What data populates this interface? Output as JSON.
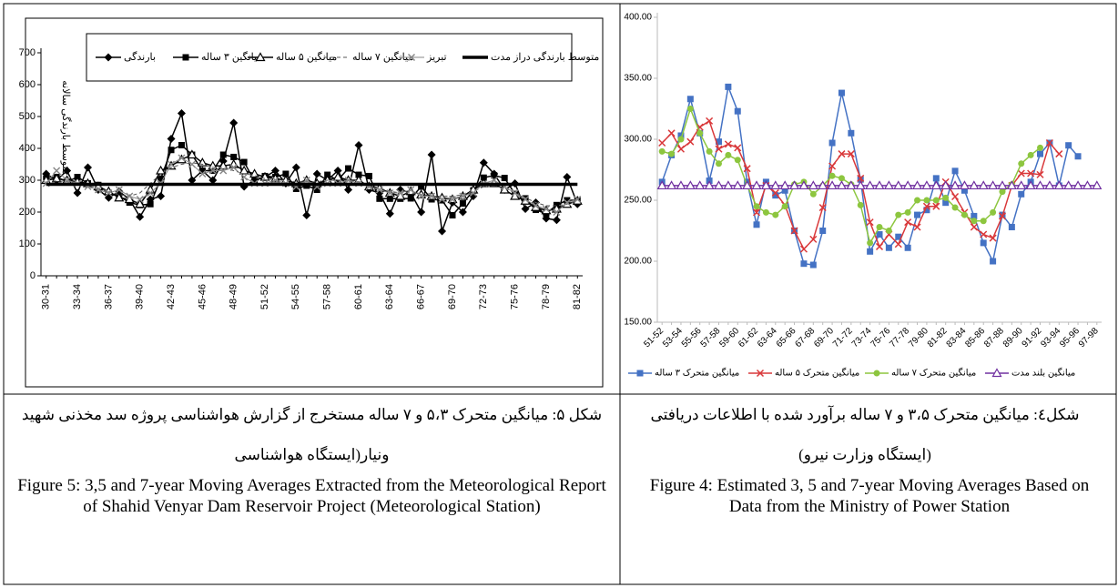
{
  "chart_data": [
    {
      "type": "line",
      "y_label": "متوسط بارندگی سالانه",
      "categories": [
        "30-31",
        null,
        null,
        "33-34",
        null,
        null,
        "36-37",
        null,
        null,
        "39-40",
        null,
        null,
        "42-43",
        null,
        null,
        "45-46",
        null,
        null,
        "48-49",
        null,
        null,
        "51-52",
        null,
        null,
        "54-55",
        null,
        null,
        "57-58",
        null,
        null,
        "60-61",
        null,
        null,
        "63-64",
        null,
        null,
        "66-67",
        null,
        null,
        "69-70",
        null,
        null,
        "72-73",
        null,
        null,
        "75-76",
        null,
        null,
        "78-79",
        null,
        null,
        "81-82"
      ],
      "ylim": [
        0,
        700
      ],
      "yticks": [
        0,
        100,
        200,
        300,
        400,
        500,
        600,
        700
      ],
      "series": [
        {
          "name": "بارندگی",
          "color": "#000000",
          "marker": "diamond",
          "values": [
            320,
            300,
            330,
            260,
            340,
            270,
            245,
            265,
            240,
            185,
            240,
            250,
            430,
            510,
            300,
            330,
            300,
            360,
            480,
            280,
            300,
            310,
            330,
            290,
            340,
            190,
            320,
            300,
            330,
            270,
            410,
            270,
            260,
            195,
            270,
            260,
            200,
            380,
            140,
            230,
            200,
            250,
            355,
            320,
            270,
            290,
            210,
            230,
            180,
            175,
            310,
            225
          ]
        },
        {
          "name": "میانگین ۳ ساله",
          "color": "#000000",
          "marker": "square",
          "values": [
            305,
            310,
            295,
            310,
            290,
            285,
            258,
            250,
            230,
            222,
            225,
            305,
            395,
            410,
            380,
            330,
            330,
            380,
            373,
            357,
            297,
            313,
            310,
            320,
            273,
            283,
            270,
            317,
            300,
            337,
            317,
            313,
            242,
            242,
            242,
            243,
            280,
            240,
            237,
            190,
            227,
            268,
            308,
            315,
            307,
            257,
            243,
            207,
            195,
            222,
            237,
            237
          ]
        },
        {
          "name": "میانگین ۵ ساله",
          "color": "#000000",
          "marker": "triangle",
          "values": [
            300,
            305,
            300,
            295,
            290,
            280,
            265,
            245,
            240,
            225,
            270,
            330,
            345,
            365,
            380,
            355,
            345,
            345,
            350,
            330,
            320,
            310,
            305,
            300,
            290,
            300,
            290,
            300,
            310,
            300,
            300,
            280,
            275,
            260,
            250,
            265,
            255,
            250,
            245,
            240,
            250,
            270,
            290,
            290,
            270,
            250,
            235,
            215,
            205,
            210,
            225,
            235
          ]
        },
        {
          "name": "میانگین ۷ ساله",
          "color": "#555555",
          "marker": "none",
          "dash": true,
          "values": [
            295,
            298,
            295,
            290,
            285,
            275,
            265,
            255,
            250,
            260,
            290,
            320,
            340,
            350,
            355,
            350,
            340,
            340,
            330,
            320,
            315,
            305,
            300,
            300,
            295,
            295,
            295,
            300,
            300,
            300,
            295,
            285,
            275,
            265,
            260,
            260,
            255,
            250,
            250,
            250,
            255,
            265,
            280,
            285,
            275,
            260,
            245,
            230,
            220,
            220,
            225,
            235
          ]
        },
        {
          "name": "تبریز",
          "color": "#888888",
          "marker": "x",
          "values": [
            290,
            330,
            300,
            290,
            280,
            270,
            260,
            270,
            250,
            240,
            260,
            290,
            350,
            370,
            350,
            320,
            330,
            330,
            340,
            310,
            290,
            290,
            300,
            290,
            280,
            300,
            280,
            290,
            290,
            300,
            290,
            280,
            270,
            260,
            260,
            270,
            250,
            250,
            240,
            240,
            250,
            260,
            290,
            300,
            280,
            260,
            240,
            220,
            210,
            200,
            230,
            240
          ]
        },
        {
          "name": "متوسط بارندگی دراز مدت",
          "color": "#000000",
          "marker": "none",
          "values": [
            287,
            287,
            287,
            287,
            287,
            287,
            287,
            287,
            287,
            287,
            287,
            287,
            287,
            287,
            287,
            287,
            287,
            287,
            287,
            287,
            287,
            287,
            287,
            287,
            287,
            287,
            287,
            287,
            287,
            287,
            287,
            287,
            287,
            287,
            287,
            287,
            287,
            287,
            287,
            287,
            287,
            287,
            287,
            287,
            287,
            287,
            287,
            287,
            287,
            287,
            287,
            287
          ]
        }
      ]
    },
    {
      "type": "line",
      "categories": [
        "51-52",
        null,
        "53-54",
        null,
        "55-56",
        null,
        "57-58",
        null,
        "59-60",
        null,
        "61-62",
        null,
        "63-64",
        null,
        "65-66",
        null,
        "67-68",
        null,
        "69-70",
        null,
        "71-72",
        null,
        "73-74",
        null,
        "75-76",
        null,
        "77-78",
        null,
        "79-80",
        null,
        "81-82",
        null,
        "83-84",
        null,
        "85-86",
        null,
        "87-88",
        null,
        "89-90",
        null,
        "91-92",
        null,
        "93-94",
        null,
        "95-96",
        null,
        "97-98"
      ],
      "ylim": [
        150,
        400
      ],
      "yticks": [
        {
          "value": 150,
          "label": "150.00"
        },
        {
          "value": 200,
          "label": "200.00"
        },
        {
          "value": 250,
          "label": "250.00"
        },
        {
          "value": 300,
          "label": "300.00"
        },
        {
          "value": 350,
          "label": "350.00"
        },
        {
          "value": 400,
          "label": "400.00"
        }
      ],
      "series": [
        {
          "name": "میانگین متحرک ۳ ساله",
          "color": "#4472c4",
          "marker": "square",
          "values": [
            265,
            287,
            303,
            333,
            305,
            266,
            298,
            343,
            323,
            265,
            230,
            265,
            254,
            258,
            225,
            198,
            197,
            225,
            297,
            338,
            305,
            267,
            208,
            222,
            211,
            220,
            211,
            238,
            242,
            268,
            248,
            274,
            258,
            237,
            215,
            200,
            238,
            228,
            255,
            265,
            288,
            297,
            262,
            295,
            286,
            null,
            null
          ]
        },
        {
          "name": "میانگین متحرک ۵ ساله",
          "color": "#d9383a",
          "marker": "x",
          "values": [
            297,
            305,
            292,
            298,
            310,
            315,
            292,
            296,
            293,
            276,
            240,
            262,
            256,
            246,
            225,
            210,
            218,
            244,
            278,
            288,
            288,
            268,
            232,
            212,
            222,
            214,
            232,
            228,
            245,
            245,
            265,
            253,
            240,
            228,
            222,
            219,
            237,
            262,
            272,
            272,
            271,
            297,
            288,
            null,
            null,
            null,
            null
          ]
        },
        {
          "name": "میانگین متحرک ۷ ساله",
          "color": "#8dc63f",
          "marker": "circle",
          "values": [
            290,
            288,
            300,
            325,
            305,
            290,
            280,
            287,
            283,
            262,
            245,
            240,
            238,
            245,
            263,
            265,
            255,
            262,
            270,
            268,
            263,
            246,
            215,
            228,
            225,
            238,
            240,
            250,
            250,
            250,
            252,
            244,
            238,
            233,
            233,
            240,
            257,
            263,
            280,
            287,
            293,
            null,
            null,
            null,
            null,
            null,
            null
          ]
        },
        {
          "name": "میانگین بلند مدت",
          "color": "#7030a0",
          "marker": "triangle",
          "values": [
            262,
            262,
            262,
            262,
            262,
            262,
            262,
            262,
            262,
            262,
            262,
            262,
            262,
            262,
            262,
            262,
            262,
            262,
            262,
            262,
            262,
            262,
            262,
            262,
            262,
            262,
            262,
            262,
            262,
            262,
            262,
            262,
            262,
            262,
            262,
            262,
            262,
            262,
            262,
            262,
            262,
            262,
            262,
            262,
            262,
            262,
            262
          ]
        }
      ]
    }
  ],
  "captions": [
    {
      "persian": "شکل ۵: میانگین متحرک ۵،۳ و ۷ ساله مستخرج از گزارش هواشناسی پروژه سد مخذنی شهید ونیار(ایستگاه هواشناسی",
      "english": "Figure 5: 3,5 and 7-year Moving Averages Extracted from the Meteorological Report of Shahid Venyar Dam Reservoir Project (Meteorological Station)"
    },
    {
      "persian": "شکل٤: میانگین متحرک ۳،۵ و ۷ ساله برآورد شده با اطلاعات دریافتی (ایستگاه وزارت نیرو)",
      "english": "Figure 4: Estimated 3, 5 and 7-year Moving Averages Based on Data from the Ministry of Power Station"
    }
  ]
}
